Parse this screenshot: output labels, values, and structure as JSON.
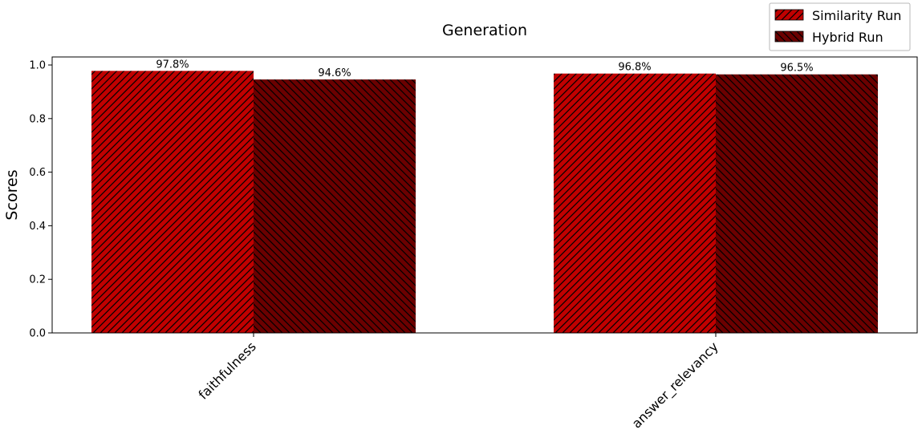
{
  "chart_data": {
    "type": "bar",
    "title": "Generation",
    "xlabel": "",
    "ylabel": "Scores",
    "categories": [
      "faithfulness",
      "answer_relevancy"
    ],
    "series": [
      {
        "name": "Similarity Run",
        "values": [
          0.978,
          0.968
        ],
        "labels": [
          "97.8%",
          "96.8%"
        ],
        "color": "#c00000",
        "hatch": "///"
      },
      {
        "name": "Hybrid Run",
        "values": [
          0.946,
          0.965
        ],
        "labels": [
          "94.6%",
          "96.5%"
        ],
        "color": "#6b0000",
        "hatch": "\\\\\\"
      }
    ],
    "yticks": [
      "0.0",
      "0.2",
      "0.4",
      "0.6",
      "0.8",
      "1.0"
    ],
    "ylim": [
      0,
      1.03
    ],
    "grid": false,
    "legend_position": "top-right"
  }
}
